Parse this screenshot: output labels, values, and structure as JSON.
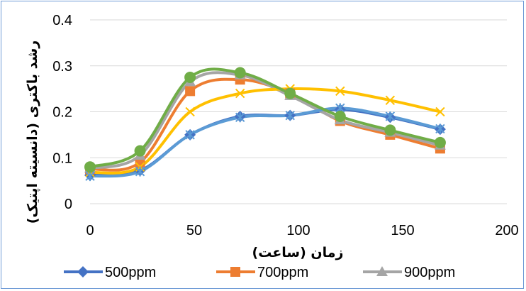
{
  "chart_data": {
    "type": "line",
    "title": "",
    "xlabel": "زمان (ساعت)",
    "ylabel": "رشد باکتری (دانسیته اپتیک)",
    "xlim": [
      0,
      200
    ],
    "ylim": [
      0,
      0.4
    ],
    "x_ticks": [
      "0",
      "50",
      "100",
      "150",
      "200"
    ],
    "y_ticks": [
      "0",
      "0.1",
      "0.2",
      "0.3",
      "0.4"
    ],
    "grid": "horizontal",
    "legend": "bottom",
    "series": [
      {
        "name": "500ppm",
        "color": "#4472c4",
        "marker": "diamond",
        "x": [
          0,
          24,
          48,
          72,
          96,
          120,
          144,
          168
        ],
        "y": [
          0.062,
          0.072,
          0.15,
          0.19,
          0.192,
          0.205,
          0.188,
          0.162
        ]
      },
      {
        "name": "700ppm",
        "color": "#ed7d31",
        "marker": "square",
        "x": [
          0,
          24,
          48,
          72,
          96,
          120,
          144,
          168
        ],
        "y": [
          0.075,
          0.09,
          0.245,
          0.27,
          0.24,
          0.18,
          0.15,
          0.12
        ]
      },
      {
        "name": "900ppm",
        "color": "#a5a5a5",
        "marker": "triangle",
        "x": [
          0,
          24,
          48,
          72,
          96,
          120,
          144,
          168
        ],
        "y": [
          0.077,
          0.105,
          0.265,
          0.28,
          0.235,
          0.182,
          0.155,
          0.127
        ]
      },
      {
        "name": "",
        "color": "#ffc000",
        "marker": "x",
        "x": [
          0,
          24,
          48,
          72,
          96,
          120,
          144,
          168
        ],
        "y": [
          0.068,
          0.08,
          0.2,
          0.24,
          0.25,
          0.245,
          0.225,
          0.2
        ]
      },
      {
        "name": "",
        "color": "#5b9bd5",
        "marker": "star",
        "x": [
          0,
          24,
          48,
          72,
          96,
          120,
          144,
          168
        ],
        "y": [
          0.06,
          0.07,
          0.15,
          0.188,
          0.192,
          0.208,
          0.19,
          0.163
        ]
      },
      {
        "name": "",
        "color": "#70ad47",
        "marker": "circle",
        "x": [
          0,
          24,
          48,
          72,
          96,
          120,
          144,
          168
        ],
        "y": [
          0.08,
          0.115,
          0.275,
          0.285,
          0.24,
          0.19,
          0.16,
          0.133
        ]
      }
    ]
  }
}
